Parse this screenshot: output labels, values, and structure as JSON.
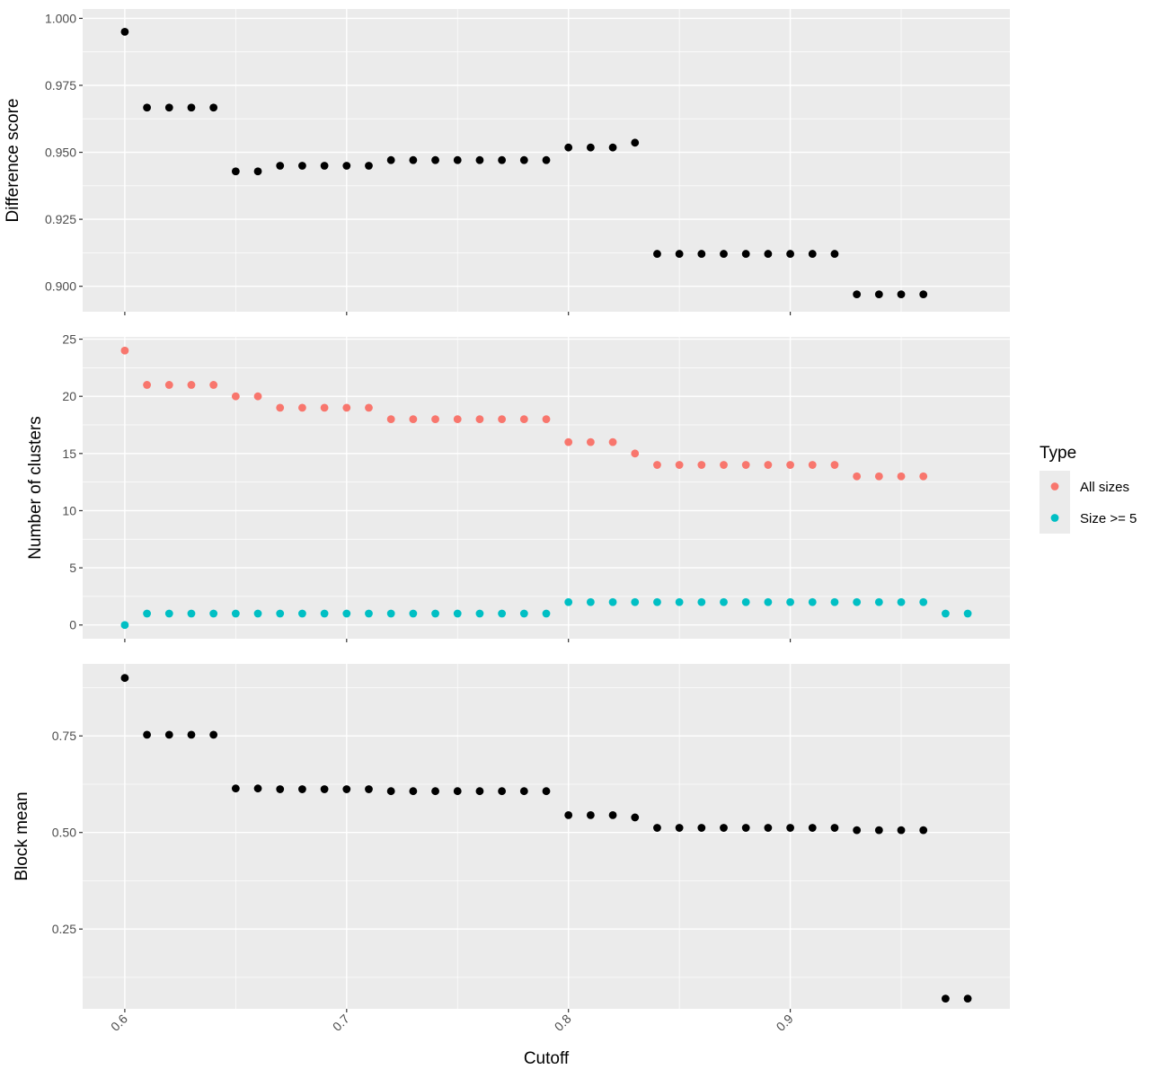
{
  "x_axis": {
    "title": "Cutoff",
    "ticks": [
      "0.6",
      "0.7",
      "0.8",
      "0.9"
    ]
  },
  "legend": {
    "title": "Type",
    "entries": [
      {
        "label": "All sizes",
        "color": "#F8766D"
      },
      {
        "label": "Size >= 5",
        "color": "#00BFC4"
      }
    ]
  },
  "chart_data": [
    {
      "type": "scatter",
      "ylabel": "Difference score",
      "xlabel": "",
      "xlim": [
        0.581,
        0.999
      ],
      "ylim": [
        0.8905,
        1.0035
      ],
      "yticks": [
        "0.900",
        "0.925",
        "0.950",
        "0.975",
        "1.000"
      ],
      "grid": true,
      "series": [
        {
          "color": "#000000",
          "x": [
            0.6,
            0.61,
            0.62,
            0.63,
            0.64,
            0.65,
            0.66,
            0.67,
            0.68,
            0.69,
            0.7,
            0.71,
            0.72,
            0.73,
            0.74,
            0.75,
            0.76,
            0.77,
            0.78,
            0.79,
            0.8,
            0.81,
            0.82,
            0.83,
            0.84,
            0.85,
            0.86,
            0.87,
            0.88,
            0.89,
            0.9,
            0.91,
            0.92,
            0.93,
            0.94,
            0.95,
            0.96
          ],
          "y": [
            0.995,
            0.9667,
            0.9667,
            0.9667,
            0.9667,
            0.9429,
            0.9429,
            0.945,
            0.945,
            0.945,
            0.945,
            0.945,
            0.9471,
            0.9471,
            0.9471,
            0.9471,
            0.9471,
            0.9471,
            0.9471,
            0.9471,
            0.9518,
            0.9518,
            0.9518,
            0.9536,
            0.9121,
            0.9121,
            0.9121,
            0.9121,
            0.9121,
            0.9121,
            0.9121,
            0.9121,
            0.9121,
            0.897,
            0.897,
            0.897,
            0.897
          ]
        }
      ]
    },
    {
      "type": "scatter",
      "ylabel": "Number of clusters",
      "xlabel": "",
      "xlim": [
        0.581,
        0.999
      ],
      "ylim": [
        -1.2,
        25.2
      ],
      "yticks": [
        "0",
        "5",
        "10",
        "15",
        "20",
        "25"
      ],
      "grid": true,
      "legend": "right",
      "series": [
        {
          "name": "All sizes",
          "color": "#F8766D",
          "x": [
            0.6,
            0.61,
            0.62,
            0.63,
            0.64,
            0.65,
            0.66,
            0.67,
            0.68,
            0.69,
            0.7,
            0.71,
            0.72,
            0.73,
            0.74,
            0.75,
            0.76,
            0.77,
            0.78,
            0.79,
            0.8,
            0.81,
            0.82,
            0.83,
            0.84,
            0.85,
            0.86,
            0.87,
            0.88,
            0.89,
            0.9,
            0.91,
            0.92,
            0.93,
            0.94,
            0.95,
            0.96
          ],
          "y": [
            24,
            21,
            21,
            21,
            21,
            20,
            20,
            19,
            19,
            19,
            19,
            19,
            18,
            18,
            18,
            18,
            18,
            18,
            18,
            18,
            16,
            16,
            16,
            15,
            14,
            14,
            14,
            14,
            14,
            14,
            14,
            14,
            14,
            13,
            13,
            13,
            13
          ]
        },
        {
          "name": "Size >= 5",
          "color": "#00BFC4",
          "x": [
            0.6,
            0.61,
            0.62,
            0.63,
            0.64,
            0.65,
            0.66,
            0.67,
            0.68,
            0.69,
            0.7,
            0.71,
            0.72,
            0.73,
            0.74,
            0.75,
            0.76,
            0.77,
            0.78,
            0.79,
            0.8,
            0.81,
            0.82,
            0.83,
            0.84,
            0.85,
            0.86,
            0.87,
            0.88,
            0.89,
            0.9,
            0.91,
            0.92,
            0.93,
            0.94,
            0.95,
            0.96,
            0.97,
            0.98
          ],
          "y": [
            0,
            1,
            1,
            1,
            1,
            1,
            1,
            1,
            1,
            1,
            1,
            1,
            1,
            1,
            1,
            1,
            1,
            1,
            1,
            1,
            2,
            2,
            2,
            2,
            2,
            2,
            2,
            2,
            2,
            2,
            2,
            2,
            2,
            2,
            2,
            2,
            2,
            1,
            1
          ]
        }
      ]
    },
    {
      "type": "scatter",
      "ylabel": "Block mean",
      "xlabel": "Cutoff",
      "xlim": [
        0.581,
        0.999
      ],
      "ylim": [
        0.0435,
        0.9365
      ],
      "yticks": [
        "0.25",
        "0.50",
        "0.75"
      ],
      "grid": true,
      "series": [
        {
          "color": "#000000",
          "x": [
            0.6,
            0.61,
            0.62,
            0.63,
            0.64,
            0.65,
            0.66,
            0.67,
            0.68,
            0.69,
            0.7,
            0.71,
            0.72,
            0.73,
            0.74,
            0.75,
            0.76,
            0.77,
            0.78,
            0.79,
            0.8,
            0.81,
            0.82,
            0.83,
            0.84,
            0.85,
            0.86,
            0.87,
            0.88,
            0.89,
            0.9,
            0.91,
            0.92,
            0.93,
            0.94,
            0.95,
            0.96,
            0.97,
            0.98
          ],
          "y": [
            0.9,
            0.753,
            0.753,
            0.753,
            0.753,
            0.614,
            0.614,
            0.612,
            0.612,
            0.612,
            0.612,
            0.612,
            0.607,
            0.607,
            0.607,
            0.607,
            0.607,
            0.607,
            0.607,
            0.607,
            0.545,
            0.545,
            0.545,
            0.539,
            0.512,
            0.512,
            0.512,
            0.512,
            0.512,
            0.512,
            0.512,
            0.512,
            0.512,
            0.506,
            0.506,
            0.506,
            0.506,
            0.07,
            0.07
          ]
        }
      ]
    }
  ]
}
